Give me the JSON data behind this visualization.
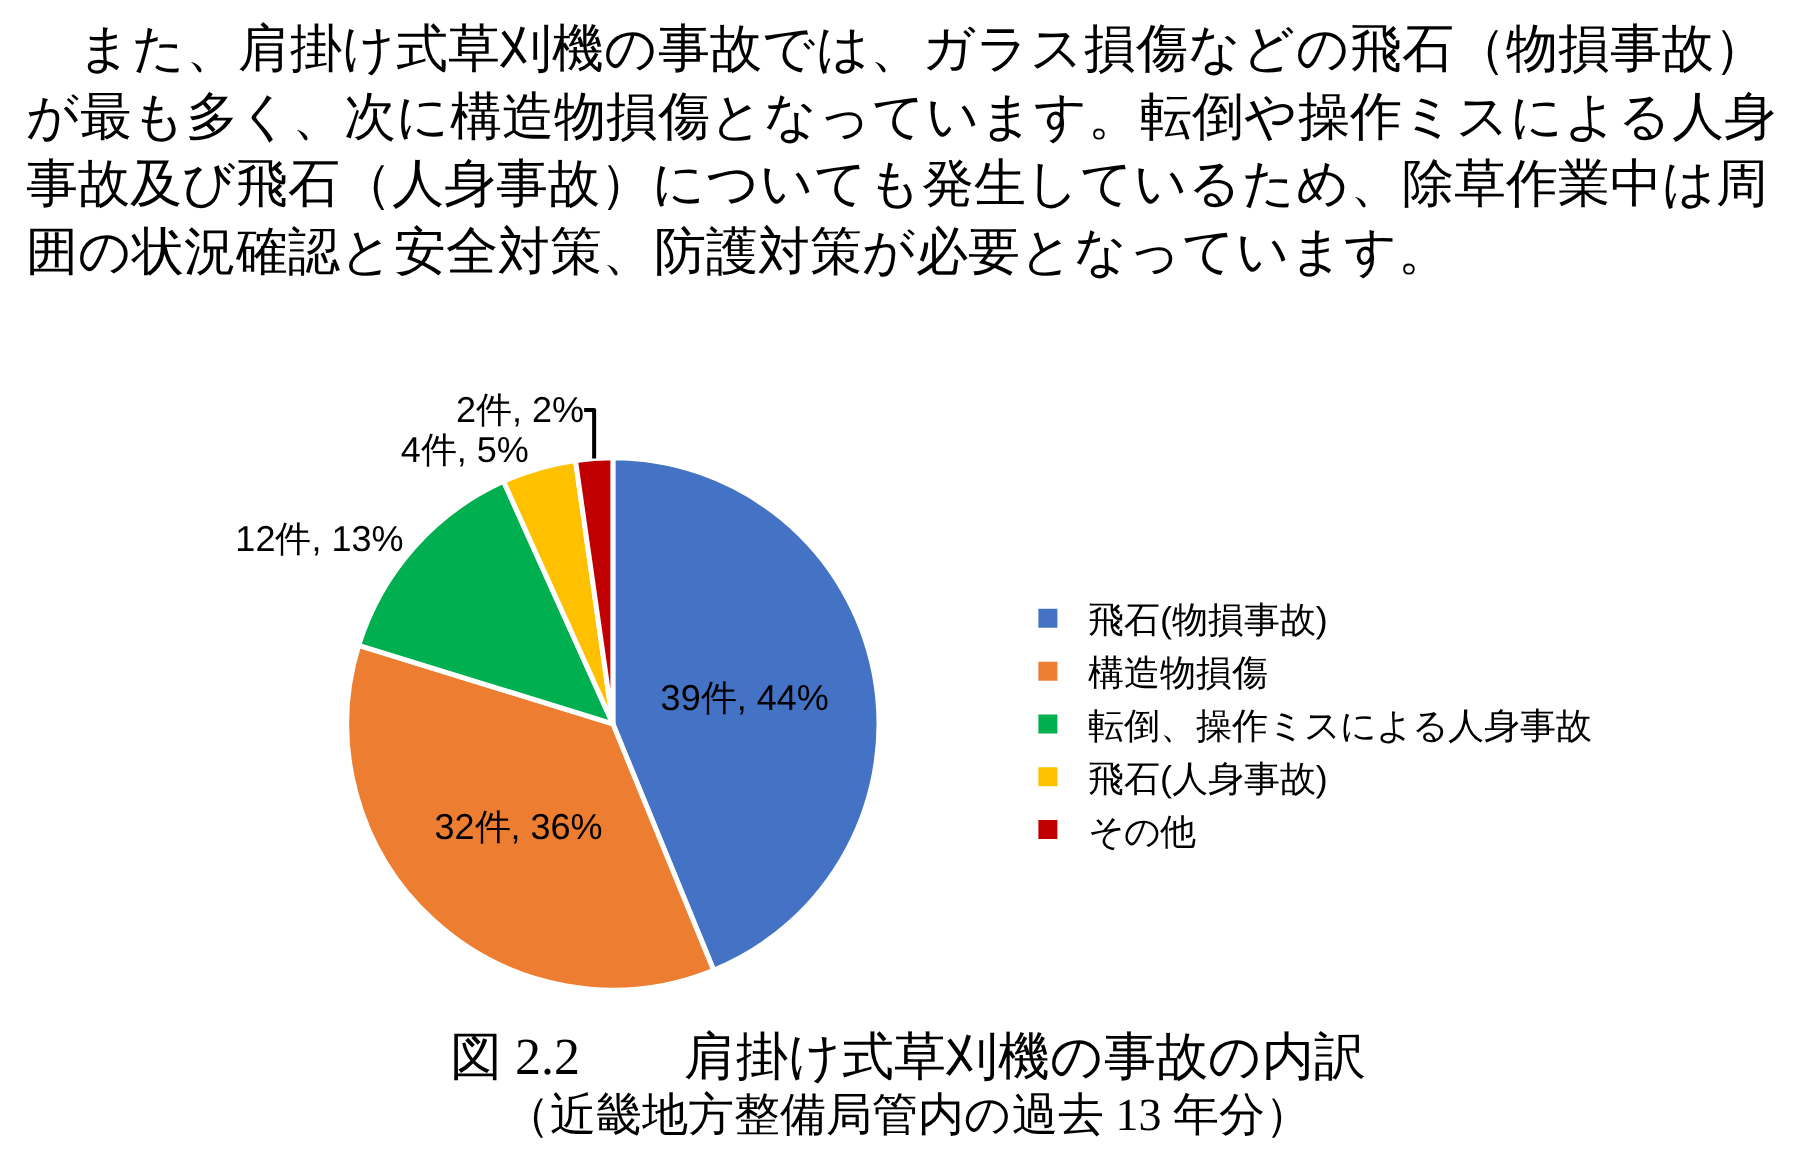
{
  "chart_data": {
    "type": "pie",
    "title": "図 2.2　　肩掛け式草刈機の事故の内訳",
    "subtitle": "（近畿地方整備局管内の過去 13 年分）",
    "annotations": [
      "　また、肩掛け式草刈機の事故では、ガラス損傷などの飛石（物損事故）が最も多く、次に構造物損傷となっています。転倒や操作ミスによる人身事故及び飛石（人身事故）についても発生しているため、除草作業中は周囲の状況確認と安全対策、防護対策が必要となっています。"
    ],
    "categories": [
      "飛石(物損事故)",
      "構造物損傷",
      "転倒、操作ミスによる人身事故",
      "飛石(人身事故)",
      "その他"
    ],
    "values": [
      39,
      32,
      12,
      4,
      2
    ],
    "value_labels": [
      "39件, 44%",
      "32件, 36%",
      "12件, 13%",
      "4件, 5%",
      "2件, 2%"
    ],
    "colors": [
      "#4472c4",
      "#ed7d31",
      "#00b050",
      "#ffc000",
      "#c00000"
    ],
    "legend": "right"
  }
}
